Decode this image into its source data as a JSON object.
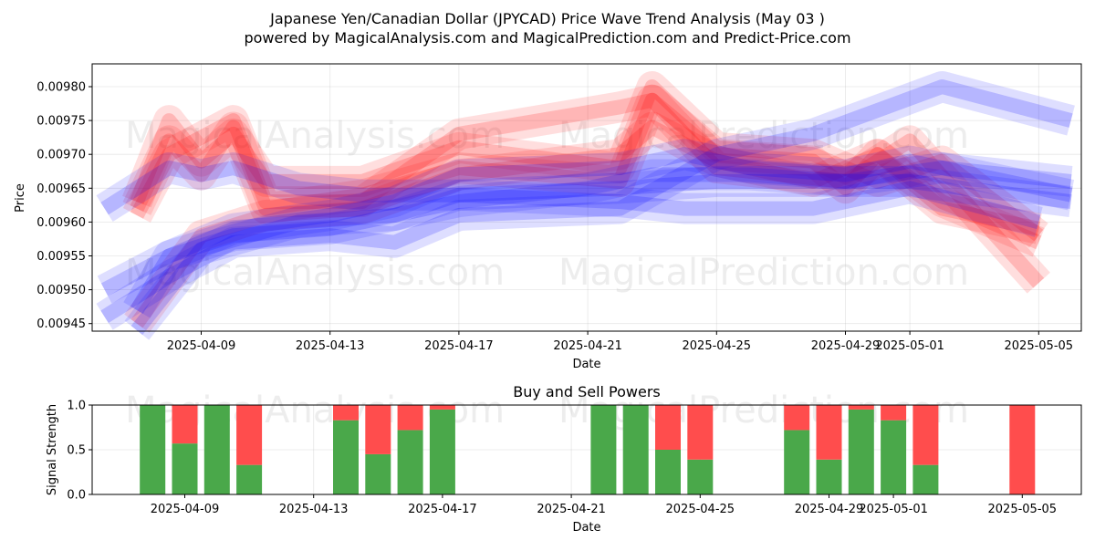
{
  "title_line1": "Japanese Yen/Canadian Dollar (JPYCAD) Price Wave Trend Analysis (May 03 )",
  "title_line2": "powered by MagicalAnalysis.com and MagicalPrediction.com and Predict-Price.com",
  "watermarks": [
    "MagicalAnalysis.com",
    "MagicalPrediction.com"
  ],
  "colors": {
    "red": "#ff0000",
    "blue": "#0000ff",
    "buy": "#4aa84a",
    "sell": "#ff4d4d"
  },
  "chart_data": [
    {
      "type": "line",
      "title": "",
      "xlabel": "Date",
      "ylabel": "Price",
      "ylim": [
        0.009438,
        0.009837
      ],
      "grid": true,
      "x_ticks": [
        "2025-04-09",
        "2025-04-13",
        "2025-04-17",
        "2025-04-21",
        "2025-04-25",
        "2025-04-29",
        "2025-05-01",
        "2025-05-05"
      ],
      "y_ticks": [
        "0.00945",
        "0.00950",
        "0.00955",
        "0.00960",
        "0.00965",
        "0.00970",
        "0.00975",
        "0.00980"
      ],
      "series": [
        {
          "color": "red",
          "x": [
            "2025-04-07",
            "2025-04-08",
            "2025-04-09",
            "2025-04-10",
            "2025-04-11",
            "2025-04-14",
            "2025-04-17",
            "2025-04-22",
            "2025-04-23",
            "2025-04-25",
            "2025-04-28",
            "2025-04-29",
            "2025-04-30",
            "2025-05-02",
            "2025-05-05"
          ],
          "y": [
            0.00962,
            0.00972,
            0.00967,
            0.00974,
            0.00962,
            0.00964,
            0.00968,
            0.00966,
            0.00978,
            0.0097,
            0.00969,
            0.00965,
            0.0097,
            0.00963,
            0.00957
          ]
        },
        {
          "color": "red",
          "x": [
            "2025-04-07",
            "2025-04-08",
            "2025-04-09",
            "2025-04-10",
            "2025-04-11",
            "2025-04-14",
            "2025-04-17",
            "2025-04-22",
            "2025-04-23",
            "2025-04-25",
            "2025-04-28",
            "2025-04-30",
            "2025-05-02",
            "2025-05-05"
          ],
          "y": [
            0.00963,
            0.00975,
            0.00969,
            0.00973,
            0.00966,
            0.00966,
            0.00971,
            0.00968,
            0.0098,
            0.00971,
            0.0097,
            0.00966,
            0.00969,
            0.00958
          ]
        },
        {
          "color": "red",
          "x": [
            "2025-04-07",
            "2025-04-08",
            "2025-04-10",
            "2025-04-11",
            "2025-04-14",
            "2025-04-17",
            "2025-04-22",
            "2025-04-23",
            "2025-04-25",
            "2025-04-29",
            "2025-05-01",
            "2025-05-05"
          ],
          "y": [
            0.00961,
            0.0097,
            0.00975,
            0.00963,
            0.00963,
            0.00973,
            0.00977,
            0.00978,
            0.00968,
            0.00966,
            0.00972,
            0.00951
          ]
        },
        {
          "color": "red",
          "x": [
            "2025-04-07",
            "2025-04-09",
            "2025-04-11",
            "2025-04-14",
            "2025-04-17",
            "2025-04-22",
            "2025-04-23",
            "2025-04-25",
            "2025-04-28",
            "2025-04-30",
            "2025-05-02",
            "2025-05-05"
          ],
          "y": [
            0.00945,
            0.00958,
            0.00961,
            0.00962,
            0.00967,
            0.0097,
            0.00974,
            0.00969,
            0.00966,
            0.0097,
            0.00962,
            0.00959
          ]
        },
        {
          "color": "blue",
          "x": [
            "2025-04-06",
            "2025-04-08",
            "2025-04-09",
            "2025-04-10",
            "2025-04-12",
            "2025-04-14",
            "2025-04-17",
            "2025-04-22",
            "2025-04-25",
            "2025-04-28",
            "2025-05-01",
            "2025-05-06"
          ],
          "y": [
            0.00962,
            0.00968,
            0.00967,
            0.00968,
            0.00965,
            0.00964,
            0.00964,
            0.00965,
            0.00966,
            0.00966,
            0.00966,
            0.00963
          ]
        },
        {
          "color": "blue",
          "x": [
            "2025-04-06",
            "2025-04-08",
            "2025-04-10",
            "2025-04-13",
            "2025-04-15",
            "2025-04-17",
            "2025-04-22",
            "2025-04-24",
            "2025-04-26",
            "2025-04-29",
            "2025-05-01",
            "2025-05-06"
          ],
          "y": [
            0.0095,
            0.00955,
            0.00959,
            0.00961,
            0.00963,
            0.00967,
            0.00968,
            0.0097,
            0.00968,
            0.00967,
            0.00969,
            0.00964
          ]
        },
        {
          "color": "blue",
          "x": [
            "2025-04-06",
            "2025-04-08",
            "2025-04-10",
            "2025-04-13",
            "2025-04-15",
            "2025-04-17",
            "2025-04-22",
            "2025-04-25",
            "2025-04-28",
            "2025-05-02",
            "2025-05-06"
          ],
          "y": [
            0.00946,
            0.00952,
            0.00957,
            0.00958,
            0.00957,
            0.00961,
            0.00962,
            0.0097,
            0.00973,
            0.0098,
            0.00975
          ]
        },
        {
          "color": "blue",
          "x": [
            "2025-04-07",
            "2025-04-08",
            "2025-04-10",
            "2025-04-13",
            "2025-04-15",
            "2025-04-17",
            "2025-04-21",
            "2025-04-23",
            "2025-04-26",
            "2025-04-29",
            "2025-05-02",
            "2025-05-06"
          ],
          "y": [
            0.00947,
            0.00955,
            0.00958,
            0.00959,
            0.00961,
            0.00963,
            0.00965,
            0.00967,
            0.00967,
            0.00966,
            0.00968,
            0.00966
          ]
        },
        {
          "color": "blue",
          "x": [
            "2025-04-07",
            "2025-04-09",
            "2025-04-12",
            "2025-04-15",
            "2025-04-17",
            "2025-04-22",
            "2025-04-24",
            "2025-04-28",
            "2025-05-01",
            "2025-05-05"
          ],
          "y": [
            0.00944,
            0.00956,
            0.0096,
            0.00961,
            0.00964,
            0.00963,
            0.00962,
            0.00962,
            0.00965,
            0.0096
          ]
        }
      ]
    },
    {
      "type": "bar",
      "title": "Buy and Sell Powers",
      "xlabel": "Date",
      "ylabel": "Signal Strength",
      "ylim": [
        0,
        1
      ],
      "grid": true,
      "y_ticks": [
        "0.0",
        "0.5",
        "1.0"
      ],
      "x_ticks": [
        "2025-04-09",
        "2025-04-13",
        "2025-04-17",
        "2025-04-21",
        "2025-04-25",
        "2025-04-29",
        "2025-05-01",
        "2025-05-05"
      ],
      "categories": [
        "2025-04-08",
        "2025-04-09",
        "2025-04-10",
        "2025-04-11",
        "2025-04-14",
        "2025-04-15",
        "2025-04-16",
        "2025-04-17",
        "2025-04-22",
        "2025-04-23",
        "2025-04-24",
        "2025-04-25",
        "2025-04-28",
        "2025-04-29",
        "2025-04-30",
        "2025-05-01",
        "2025-05-02",
        "2025-05-05"
      ],
      "series": [
        {
          "color": "buy",
          "values": [
            1.0,
            0.57,
            1.0,
            0.33,
            0.83,
            0.45,
            0.72,
            0.95,
            1.0,
            1.0,
            0.5,
            0.39,
            0.72,
            0.39,
            0.95,
            0.83,
            0.33,
            0.0
          ]
        },
        {
          "color": "sell",
          "values": [
            0.0,
            0.43,
            0.0,
            0.67,
            0.17,
            0.55,
            0.28,
            0.05,
            0.0,
            0.0,
            0.5,
            0.61,
            0.28,
            0.61,
            0.05,
            0.17,
            0.67,
            1.0
          ]
        }
      ]
    }
  ]
}
